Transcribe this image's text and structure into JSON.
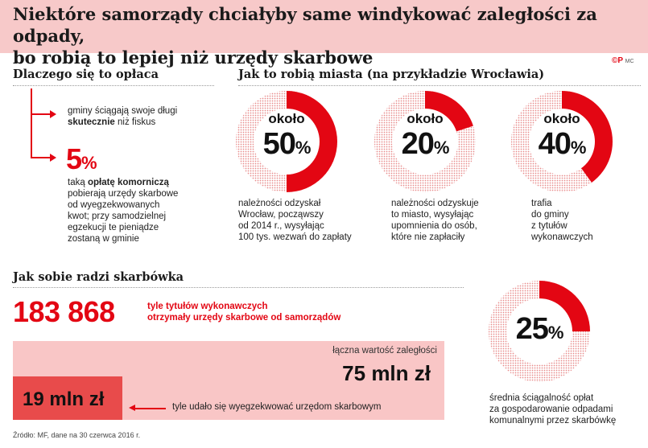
{
  "header": {
    "title_line1": "Niektóre samorządy chciałyby same windykować zaległości za odpady,",
    "title_line2": "bo robią to lepiej niż urzędy skarbowe"
  },
  "logo": {
    "mark": "©P",
    "sub": "MC"
  },
  "why": {
    "heading": "Dlaczego się to opłaca",
    "point1_pre": "gminy ściągają swoje długi",
    "point1_bold": "skutecznie",
    "point1_post": "niż fiskus",
    "pct_value": "5",
    "pct_sign": "%",
    "point2_pre": "taką",
    "point2_bold": "opłatę komorniczą",
    "point2_line2": "pobierają urzędy skarbowe",
    "point2_line3": "od wyegzekwowanych",
    "point2_line4": "kwot; przy samodzielnej",
    "point2_line5": "egzekucji te pieniądze",
    "point2_line6": "zostaną w gminie"
  },
  "cities": {
    "heading": "Jak to robią miasta (na przykładzie Wrocławia)"
  },
  "tax": {
    "heading": "Jak sobie radzi skarbówka",
    "big_number": "183 868",
    "caption_line1": "tyle tytułów wykonawczych",
    "caption_line2": "otrzymały urzędy skarbowe od samorządów",
    "total_label": "łączna wartość zaległości",
    "total_value": "75 mln zł",
    "part_value": "19 mln zł",
    "part_caption": "tyle udało się wyegzekwować urzędom skarbowym",
    "rate_line1": "średnia ściągalność opłat",
    "rate_line2": "za gospodarowanie odpadami",
    "rate_line3": "komunalnymi przez skarbówkę"
  },
  "source": "Źródło: MF, dane na 30 czerwca 2016 r.",
  "chart_data": [
    {
      "type": "pie",
      "label_top": "około",
      "value": 50,
      "display": "50",
      "unit": "%",
      "caption": [
        "należności odzyskał",
        "Wrocław, począwszy",
        "od 2014 r., wysyłając",
        "100 tys. wezwań do zapłaty"
      ]
    },
    {
      "type": "pie",
      "label_top": "około",
      "value": 20,
      "display": "20",
      "unit": "%",
      "caption": [
        "należności odzyskuje",
        "to miasto, wysyłając",
        "upomnienia do osób,",
        "które nie zapłaciły"
      ]
    },
    {
      "type": "pie",
      "label_top": "około",
      "value": 40,
      "display": "40",
      "unit": "%",
      "caption": [
        "trafia",
        "do gminy",
        "z tytułów",
        "wykonawczych"
      ]
    },
    {
      "type": "pie",
      "label_top": "",
      "value": 25,
      "display": "25",
      "unit": "%",
      "caption": []
    },
    {
      "type": "bar",
      "categories": [
        "łączna wartość zaległości",
        "tyle udało się wyegzekwować urzędom skarbowym"
      ],
      "values": [
        75,
        19
      ]
    }
  ],
  "colors": {
    "accent": "#e30613",
    "pink": "#f9c6c6",
    "header": "#f7c9c9",
    "bar_part": "#e84b4b"
  }
}
